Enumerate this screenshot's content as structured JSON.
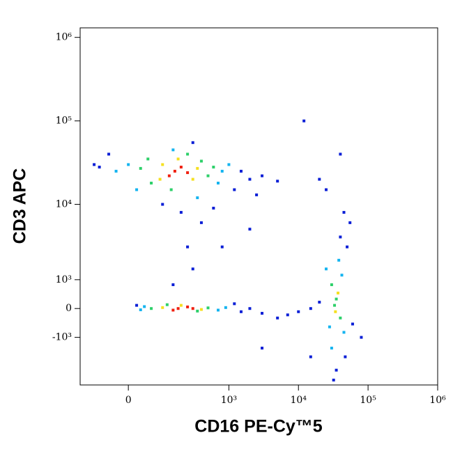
{
  "chart_data": {
    "type": "scatter",
    "x_label": "CD16 PE-Cy™5",
    "y_label": "CD3 APC",
    "x_scale": "biexponential",
    "y_scale": "biexponential",
    "xlim": [
      -170,
      1000000
    ],
    "ylim": [
      -4600,
      1300000
    ],
    "xticks": [
      0,
      {
        "value": 1000,
        "label": "10³"
      },
      {
        "value": 10000,
        "label": "10⁴"
      },
      {
        "value": 100000,
        "label": "10⁵"
      },
      {
        "value": 1000000,
        "label": "10⁶"
      }
    ],
    "yticks": [
      {
        "value": -1000,
        "label": "-10³"
      },
      0,
      {
        "value": 1000,
        "label": "10³"
      },
      {
        "value": 10000,
        "label": "10⁴"
      },
      {
        "value": 100000,
        "label": "10⁵"
      },
      {
        "value": 1000000,
        "label": "10⁶"
      }
    ],
    "groups": [
      {
        "color": "#0a1fd6",
        "x": [
          -80,
          -50,
          1500,
          2000,
          200,
          400,
          300,
          1200,
          -100,
          3000,
          600,
          100,
          5000,
          2500,
          1500,
          2000,
          20,
          3000,
          1200,
          5000,
          150,
          300,
          250,
          7000,
          20000,
          15000,
          50000,
          47000,
          35000,
          40000,
          55000,
          10000,
          60000,
          32000,
          45000,
          800,
          2000,
          20000,
          25000,
          12000,
          40000,
          3000,
          15000,
          80000
        ],
        "y": [
          28000,
          40000,
          25000,
          20000,
          8000,
          6000,
          55000,
          15000,
          30000,
          22000,
          9000,
          10000,
          19000,
          13000,
          -100,
          0,
          100,
          -150,
          150,
          -300,
          800,
          1500,
          3000,
          -200,
          200,
          0,
          3000,
          -2000,
          -3000,
          4000,
          6000,
          -100,
          -500,
          -4000,
          8000,
          3000,
          5000,
          20000,
          15000,
          100000,
          40000,
          -1500,
          -2000,
          -1000
        ]
      },
      {
        "color": "#14b4f0",
        "x": [
          0,
          800,
          20,
          350,
          700,
          150,
          -30,
          1000,
          700,
          40,
          900,
          30,
          25000,
          45000,
          28000,
          38000,
          42000,
          30000
        ],
        "y": [
          30000,
          25000,
          15000,
          12000,
          18000,
          45000,
          25000,
          30000,
          -50,
          60,
          30,
          -40,
          1500,
          -800,
          -600,
          2000,
          1200,
          -1500
        ]
      },
      {
        "color": "#2ed06a",
        "x": [
          50,
          400,
          60,
          500,
          250,
          140,
          30,
          600,
          60,
          500,
          350,
          120,
          35000,
          30000,
          40000,
          33000
        ],
        "y": [
          35000,
          33000,
          18000,
          22000,
          40000,
          15000,
          27000,
          28000,
          0,
          20,
          -80,
          120,
          300,
          800,
          -300,
          100
        ]
      },
      {
        "color": "#f5e020",
        "x": [
          100,
          300,
          180,
          350,
          90,
          100,
          400,
          200,
          37000,
          34000
        ],
        "y": [
          30000,
          20000,
          35000,
          27000,
          20000,
          30,
          -30,
          100,
          500,
          -100
        ]
      },
      {
        "color": "#f02010",
        "x": [
          160,
          200,
          130,
          250,
          180,
          250,
          150,
          300
        ],
        "y": [
          25000,
          28000,
          22000,
          24000,
          0,
          50,
          -50,
          0
        ]
      }
    ]
  }
}
